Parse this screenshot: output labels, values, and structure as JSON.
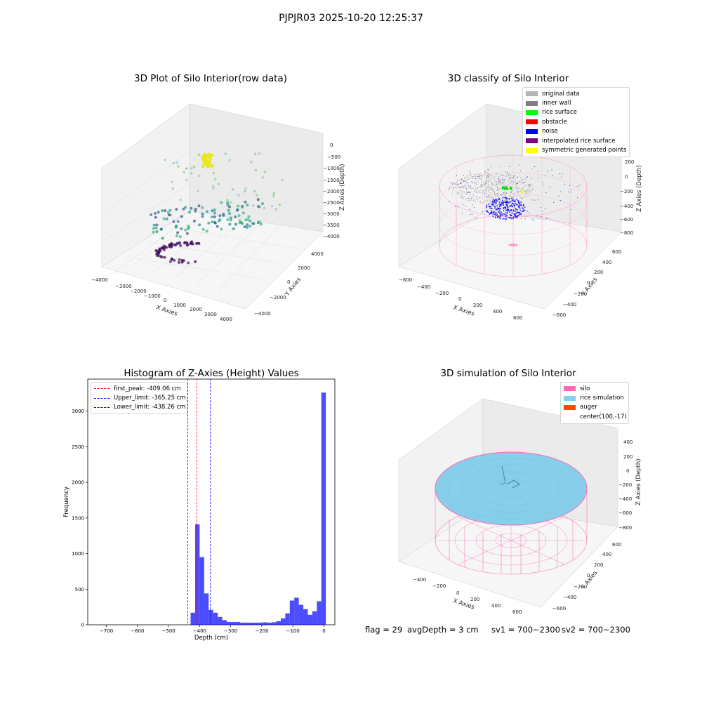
{
  "suptitle": "PJPJR03 2025-10-20 12:25:37",
  "footer": {
    "flag": "flag = 29",
    "avg_depth": "avgDepth = 3 cm",
    "sv1": "sv1 = 700~2300",
    "sv2": "sv2 = 700~2300"
  },
  "colors": {
    "silo": "#ff69b4",
    "rice_simulation": "#87ceeb",
    "histogram_bar": "#0000ff",
    "first_peak_line": "#ff0000",
    "limit_lines": "#0000ff"
  },
  "chart_data": [
    {
      "type": "scatter3d",
      "title": "3D Plot of Silo Interior(row data)",
      "xlabel": "X Axies",
      "ylabel": "Y Axies",
      "zlabel": "Z Axies (Depth)",
      "xticks": [
        "−4000",
        "−3000",
        "−2000",
        "−1000",
        "0",
        "1000",
        "2000",
        "3000",
        "4000"
      ],
      "yticks": [
        "−4000",
        "−2000",
        "0",
        "2000",
        "4000"
      ],
      "zticks": [
        "0",
        "−500",
        "−1000",
        "−1500",
        "−2000",
        "−2500",
        "−3000",
        "−3500",
        "−4000"
      ],
      "xlim": [
        -4000,
        4000
      ],
      "ylim": [
        -4000,
        4000
      ],
      "zlim": [
        -4000,
        0
      ],
      "colormap": "viridis (by depth)"
    },
    {
      "type": "scatter3d",
      "title": "3D classify of Silo Interior",
      "xlabel": "X Axies",
      "ylabel": "Y Axies",
      "zlabel": "Z Axies (Depth)",
      "xticks": [
        "−600",
        "−400",
        "−200",
        "0",
        "200",
        "400",
        "600"
      ],
      "yticks": [
        "−600",
        "−400",
        "−200",
        "0",
        "200",
        "400",
        "600"
      ],
      "zticks": [
        "200",
        "0",
        "−200",
        "−400",
        "−600",
        "−800"
      ],
      "xlim": [
        -600,
        600
      ],
      "ylim": [
        -600,
        600
      ],
      "zlim": [
        -800,
        200
      ],
      "legend_position": "top-right",
      "legend": [
        {
          "label": "original data",
          "color": "#b4b4b4"
        },
        {
          "label": "inner wall",
          "color": "#808080"
        },
        {
          "label": "rice surface",
          "color": "#00ff00"
        },
        {
          "label": "obstacle",
          "color": "#ff0000"
        },
        {
          "label": "noise",
          "color": "#0000ff"
        },
        {
          "label": "interpolated rice surface",
          "color": "#800080"
        },
        {
          "label": "symmetric generated points",
          "color": "#ffff00"
        }
      ]
    },
    {
      "type": "bar",
      "title": "Histogram of Z-Axies (Height) Values",
      "xlabel": "Depth (cm)",
      "ylabel": "Frequency",
      "xlim": [
        -760,
        35
      ],
      "ylim": [
        0,
        3450
      ],
      "xticks": [
        "−700",
        "−600",
        "−500",
        "−400",
        "−300",
        "−200",
        "−100",
        "0"
      ],
      "xtick_values": [
        -700,
        -600,
        -500,
        -400,
        -300,
        -200,
        -100,
        0
      ],
      "yticks": [
        "0",
        "500",
        "1000",
        "1500",
        "2000",
        "2500",
        "3000"
      ],
      "ytick_values": [
        0,
        500,
        1000,
        1500,
        2000,
        2500,
        3000
      ],
      "bin_width": 14.5,
      "bin_starts": [
        -429,
        -414.5,
        -400,
        -385.5,
        -371,
        -356.5,
        -342,
        -327.5,
        -313,
        -298.5,
        -284,
        -269.5,
        -255,
        -240.5,
        -226,
        -211.5,
        -197,
        -182.5,
        -168,
        -153.5,
        -139,
        -124.5,
        -110,
        -95.5,
        -81,
        -66.5,
        -52,
        -37.5,
        -23,
        -8.5
      ],
      "values": [
        170,
        1410,
        950,
        440,
        210,
        170,
        110,
        65,
        40,
        40,
        40,
        30,
        30,
        30,
        30,
        30,
        35,
        30,
        35,
        50,
        90,
        160,
        340,
        380,
        280,
        220,
        140,
        190,
        330,
        3260
      ],
      "vlines": [
        {
          "label": "first_peak: -409.06 cm",
          "x": -409.06,
          "color": "#ff0000"
        },
        {
          "label": "Upper_limit: -365.25 cm",
          "x": -365.25,
          "color": "#0000ff"
        },
        {
          "label": "Lower_limit: -438.26 cm",
          "x": -438.26,
          "color": "#0000ff"
        }
      ],
      "legend_position": "top-left"
    },
    {
      "type": "surface3d",
      "title": "3D simulation of Silo Interior",
      "xlabel": "X Axies",
      "ylabel": "Y Axies",
      "zlabel": "Z Axies (Depth)",
      "xticks": [
        "−400",
        "−200",
        "0",
        "200",
        "400",
        "600"
      ],
      "yticks": [
        "−600",
        "−400",
        "−200",
        "0",
        "200",
        "400",
        "600"
      ],
      "zticks": [
        "400",
        "200",
        "0",
        "−200",
        "−400",
        "−600",
        "−800"
      ],
      "xlim": [
        -600,
        600
      ],
      "ylim": [
        -600,
        600
      ],
      "zlim": [
        -800,
        400
      ],
      "legend_position": "top-right",
      "legend": [
        {
          "label": "silo",
          "color": "#ff69b4"
        },
        {
          "label": "rice simulation",
          "color": "#87ceeb"
        },
        {
          "label": "auger",
          "color": "#ff4500"
        },
        {
          "label": "center(100,-17)",
          "color": ""
        }
      ]
    }
  ]
}
